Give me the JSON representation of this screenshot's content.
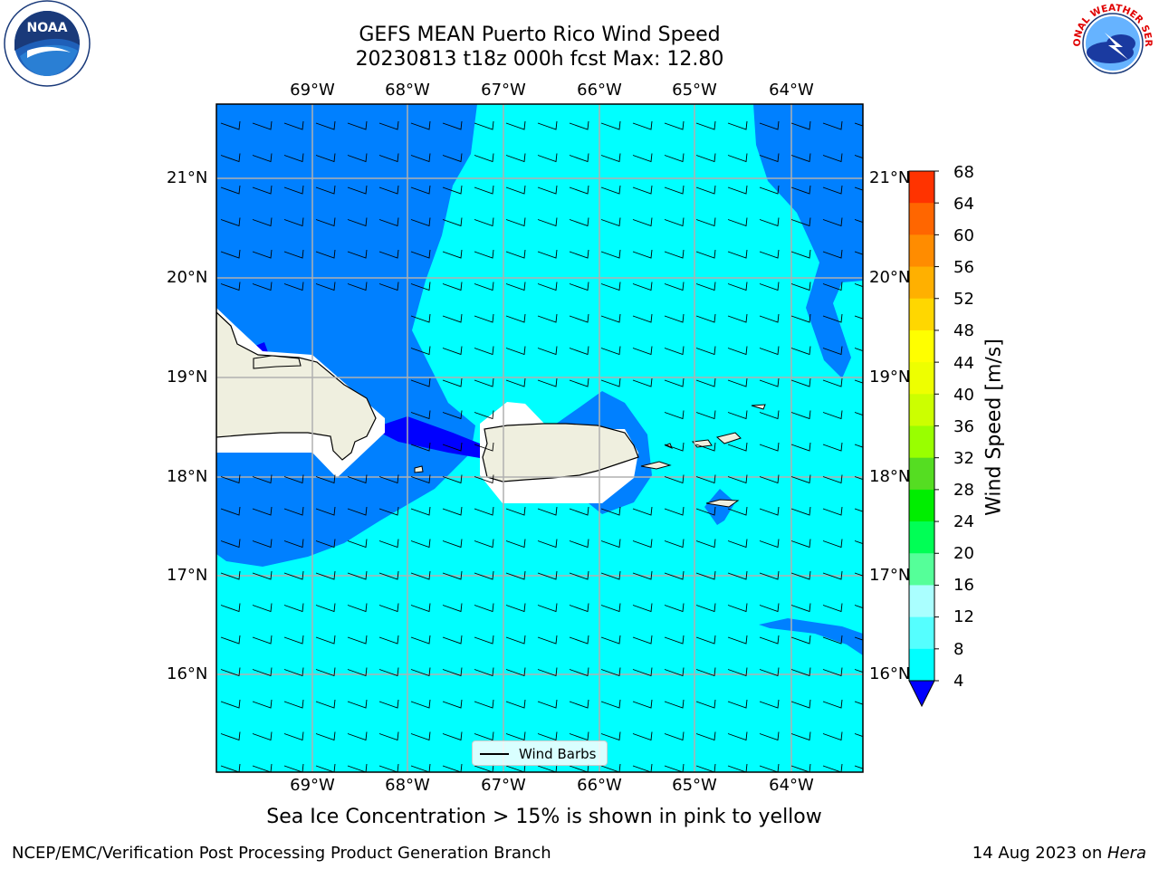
{
  "title_line1": "GEFS MEAN Puerto Rico Wind Speed",
  "title_line2": "20230813 t18z 000h fcst   Max: 12.80",
  "lon_labels": [
    "69°W",
    "68°W",
    "67°W",
    "66°W",
    "65°W",
    "64°W"
  ],
  "lat_labels": [
    "21°N",
    "20°N",
    "19°N",
    "18°N",
    "17°N",
    "16°N"
  ],
  "colorbar": {
    "title": "Wind Speed [m/s]",
    "ticks": [
      "68",
      "64",
      "60",
      "56",
      "52",
      "48",
      "44",
      "40",
      "36",
      "32",
      "28",
      "24",
      "20",
      "16",
      "12",
      "8",
      "4"
    ],
    "colors": [
      "#ff0000",
      "#ff3300",
      "#ff6600",
      "#ff8c00",
      "#ffb000",
      "#ffd700",
      "#ffff00",
      "#eeff00",
      "#ccff00",
      "#99ff00",
      "#55dd22",
      "#00ee00",
      "#00ff55",
      "#55ff99",
      "#aaffff",
      "#55ffff",
      "#00ffff",
      "#0080ff",
      "#0000ff"
    ]
  },
  "legend_label": "Wind Barbs",
  "caption": "Sea Ice Concentration > 15% is shown in pink to yellow",
  "footer_left": "NCEP/EMC/Verification Post Processing Product Generation Branch",
  "footer_right_prefix": "14 Aug 2023 on ",
  "footer_right_host": "Hera",
  "logo_left_text": "NOAA",
  "logo_right_text": "NATIONAL WEATHER SERVICE",
  "colors": {
    "calm": "#0080ff",
    "moderate": "#00ffff",
    "strong_low": "#0000ff",
    "land": "#efefdf",
    "grid": "#b0b0b0"
  }
}
